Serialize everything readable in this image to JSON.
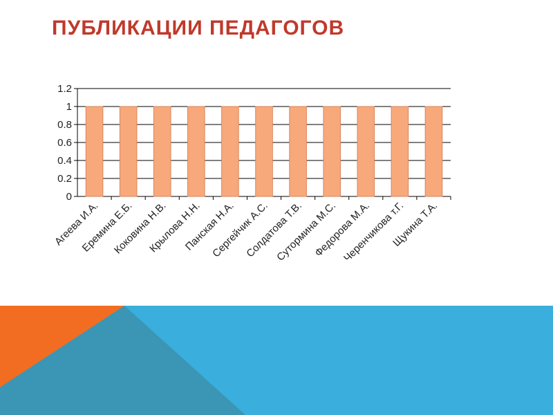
{
  "slide": {
    "title": "ПУБЛИКАЦИИ ПЕДАГОГОВ"
  },
  "colors": {
    "title": "#c0392b",
    "bar_fill": "#f8a97b",
    "bar_stroke": "#d9835a",
    "deco_orange": "#f26d21",
    "deco_blue": "#3aaedc",
    "deco_teal": "#3b95b4"
  },
  "chart_data": {
    "type": "bar",
    "categories": [
      "Агеева И.А.",
      "Еремина Е.Б.",
      "Коковина Н.В.",
      "Крылова Н.Н.",
      "Панская Н.А.",
      "Сергейчик А.С.",
      "Солдатова Т.В.",
      "Сутормина М.С.",
      "Федорова М.А.",
      "Черенчикова т.Г.",
      "Щукина Т.А."
    ],
    "values": [
      1,
      1,
      1,
      1,
      1,
      1,
      1,
      1,
      1,
      1,
      1
    ],
    "yticks": [
      "0",
      "0.2",
      "0.4",
      "0.6",
      "0.8",
      "1",
      "1.2"
    ],
    "ylim": [
      0,
      1.2
    ],
    "grid": true,
    "legend": "none",
    "title": "",
    "xlabel": "",
    "ylabel": ""
  }
}
